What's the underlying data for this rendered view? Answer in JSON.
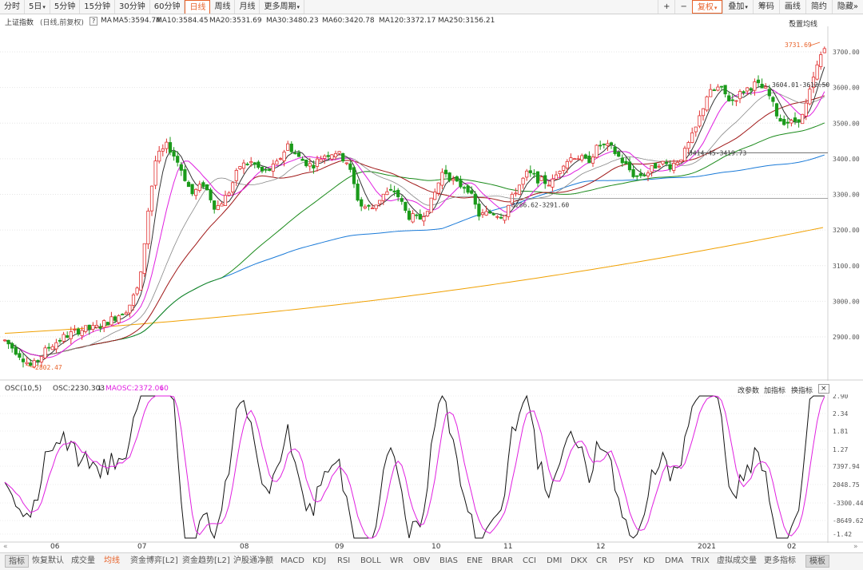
{
  "toolbar": {
    "left": [
      {
        "label": "分时",
        "active": false,
        "x": 0
      },
      {
        "label": "5日",
        "active": false,
        "caret": true
      },
      {
        "label": "5分钟",
        "active": false
      },
      {
        "label": "15分钟",
        "active": false
      },
      {
        "label": "30分钟",
        "active": false
      },
      {
        "label": "60分钟",
        "active": false
      },
      {
        "label": "日线",
        "active": true
      },
      {
        "label": "周线",
        "active": false
      },
      {
        "label": "月线",
        "active": false
      },
      {
        "label": "更多周期",
        "active": false,
        "caret": true
      }
    ],
    "right": [
      {
        "label": "+",
        "style": "plain"
      },
      {
        "label": "−",
        "style": "plain"
      },
      {
        "label": "复权",
        "style": "orange",
        "caret": true
      },
      {
        "label": "叠加",
        "style": "plain",
        "caret": true
      },
      {
        "label": "筹码",
        "style": "plain"
      },
      {
        "label": "画线",
        "style": "plain"
      },
      {
        "label": "简约",
        "style": "plain"
      },
      {
        "label": "隐藏",
        "style": "plain",
        "suffix": "»"
      }
    ]
  },
  "header": {
    "title": "上证指数",
    "subtitle": "(日线,前复权)",
    "help": "?",
    "ma_label": "MA",
    "ma": [
      {
        "text": "MA5:3594.74",
        "color": "#333333"
      },
      {
        "text": "MA10:3584.45",
        "color": "#e020e0"
      },
      {
        "text": "MA20:3531.69",
        "color": "#888888"
      },
      {
        "text": "MA30:3480.23",
        "color": "#a01818"
      },
      {
        "text": "MA60:3420.78",
        "color": "#1a8a1a"
      },
      {
        "text": "MA120:3372.17",
        "color": "#1a7ad8"
      },
      {
        "text": "MA250:3156.21",
        "color": "#f0a000"
      }
    ],
    "settings": "设置均线"
  },
  "price_axis": [
    "3700.00",
    "3600.00",
    "3500.00",
    "3400.00",
    "3300.00",
    "3200.00",
    "3100.00",
    "3000.00",
    "2900.00"
  ],
  "annotations": {
    "high": "3731.69",
    "low": "2802.47",
    "range1": "3604.01-3612.50",
    "range2": "3414.45-3419.73",
    "range3": "3286.62-3291.60"
  },
  "osc": {
    "name": "OSC(10,5)",
    "value": "OSC:2230.303",
    "ma_value": "MAOSC:2372.060",
    "actions": [
      "改参数",
      "加指标",
      "换指标"
    ],
    "close": "×",
    "axis": [
      "2.90",
      "2.34",
      "1.81",
      "1.27",
      "7397.94",
      "2048.75",
      "-3300.44",
      "-8649.62",
      "-1.42"
    ]
  },
  "x_axis": [
    "06",
    "07",
    "08",
    "09",
    "10",
    "11",
    "12",
    "2021",
    "02"
  ],
  "bottom_tabs": [
    {
      "label": "指标",
      "style": "first"
    },
    {
      "label": "恢复默认"
    },
    {
      "label": "成交量"
    },
    {
      "label": "均线",
      "style": "orange"
    },
    {
      "label": "资金博弈[L2]"
    },
    {
      "label": "资金趋势[L2]"
    },
    {
      "label": "沪股通净额"
    },
    {
      "label": "MACD"
    },
    {
      "label": "KDJ"
    },
    {
      "label": "RSI"
    },
    {
      "label": "BOLL"
    },
    {
      "label": "WR"
    },
    {
      "label": "OBV"
    },
    {
      "label": "BIAS"
    },
    {
      "label": "ENE"
    },
    {
      "label": "BRAR"
    },
    {
      "label": "CCI"
    },
    {
      "label": "DMI"
    },
    {
      "label": "DKX"
    },
    {
      "label": "CR"
    },
    {
      "label": "PSY"
    },
    {
      "label": "KD"
    },
    {
      "label": "DMA"
    },
    {
      "label": "TRIX"
    },
    {
      "label": "虚拟成交量"
    },
    {
      "label": "更多指标"
    },
    {
      "label": "模板",
      "style": "mod"
    }
  ],
  "colors": {
    "up": "#e03030",
    "down": "#1a9a1a",
    "ma5": "#333333",
    "ma10": "#e020e0",
    "ma20": "#888888",
    "ma30": "#a01818",
    "ma60": "#1a8a1a",
    "ma120": "#1a7ad8",
    "ma250": "#f0a000",
    "accent": "#e8632b"
  }
}
